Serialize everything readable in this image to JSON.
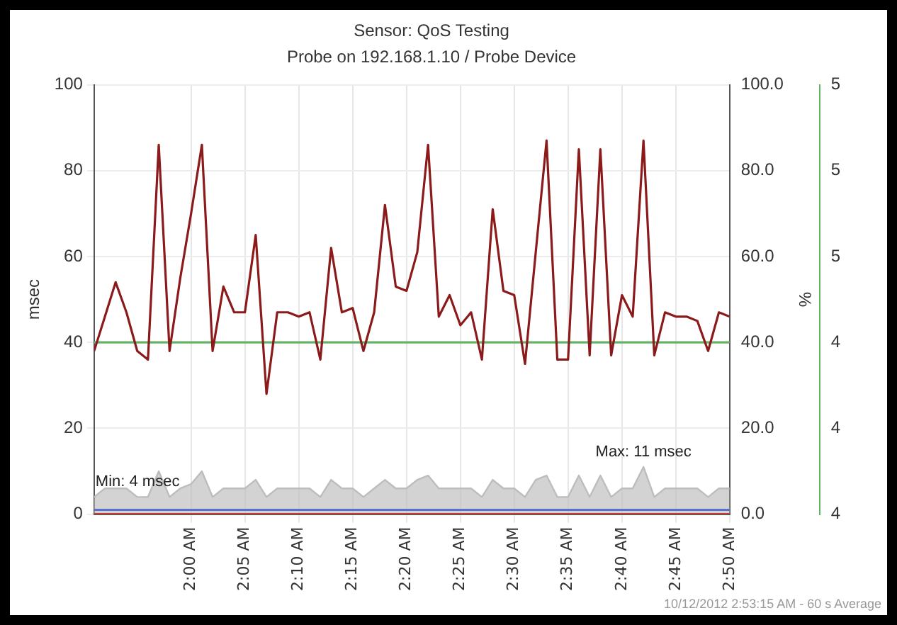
{
  "chart_data": {
    "type": "line",
    "title": "Sensor: QoS Testing",
    "subtitle": "Probe on 192.168.1.10 / Probe Device",
    "ylabel": "msec",
    "y2label": "%",
    "x": [
      1.85,
      1.8667,
      1.8833,
      1.9,
      1.9167,
      1.9333,
      1.95,
      1.9667,
      1.9833,
      2,
      2.0167,
      2.0333,
      2.05,
      2.0667,
      2.0833,
      2.1,
      2.1167,
      2.1333,
      2.15,
      2.1667,
      2.1833,
      2.2,
      2.2167,
      2.2333,
      2.25,
      2.2667,
      2.2833,
      2.3,
      2.3167,
      2.3333,
      2.35,
      2.3667,
      2.3833,
      2.4,
      2.4167,
      2.4333,
      2.45,
      2.4667,
      2.4833,
      2.5,
      2.5167,
      2.5333,
      2.55,
      2.5667,
      2.5833,
      2.6,
      2.6167,
      2.6333,
      2.65,
      2.6667,
      2.6833,
      2.7,
      2.7167,
      2.7333,
      2.75,
      2.7667,
      2.7833,
      2.8,
      2.8167,
      2.8333
    ],
    "series": [
      {
        "color": "#8b1a1a",
        "values": [
          38,
          46,
          54,
          47,
          38,
          36,
          86,
          38,
          55,
          70,
          86,
          38,
          53,
          47,
          47,
          65,
          28,
          47,
          47,
          46,
          47,
          36,
          62,
          47,
          48,
          38,
          47,
          72,
          53,
          52,
          61,
          86,
          46,
          51,
          44,
          47,
          36,
          71,
          52,
          51,
          35,
          61,
          87,
          36,
          36,
          85,
          37,
          85,
          37,
          51,
          46,
          87,
          37,
          47,
          46,
          46,
          45,
          38,
          47,
          46
        ]
      },
      {
        "axis": "y3",
        "color": "#66b366",
        "values": [
          4.4,
          4.4,
          4.4,
          4.4,
          4.4,
          4.4,
          4.4,
          4.4,
          4.4,
          4.4,
          4.4,
          4.4,
          4.4,
          4.4,
          4.4,
          4.4,
          4.4,
          4.4,
          4.4,
          4.4,
          4.4,
          4.4,
          4.4,
          4.4,
          4.4,
          4.4,
          4.4,
          4.4,
          4.4,
          4.4,
          4.4,
          4.4,
          4.4,
          4.4,
          4.4,
          4.4,
          4.4,
          4.4,
          4.4,
          4.4,
          4.4,
          4.4,
          4.4,
          4.4,
          4.4,
          4.4,
          4.4,
          4.4,
          4.4,
          4.4,
          4.4,
          4.4,
          4.4,
          4.4,
          4.4,
          4.4,
          4.4,
          4.4,
          4.4,
          4.4
        ]
      },
      {
        "axis": "y2",
        "color": "#e03030",
        "values": [
          0,
          0,
          0,
          0,
          0,
          0,
          0,
          0,
          0,
          0,
          0,
          0,
          0,
          0,
          0,
          0,
          0,
          0,
          0,
          0,
          0,
          0,
          0,
          0,
          0,
          0,
          0,
          0,
          0,
          0,
          0,
          0,
          0,
          0,
          0,
          0,
          0,
          0,
          0,
          0,
          0,
          0,
          0,
          0,
          0,
          0,
          0,
          0,
          0,
          0,
          0,
          0,
          0,
          0,
          0,
          0,
          0,
          0,
          0,
          0
        ]
      },
      {
        "color": "#5b6fd0",
        "values": [
          1,
          1,
          1,
          1,
          1,
          1,
          1,
          1,
          1,
          1,
          1,
          1,
          1,
          1,
          1,
          1,
          1,
          1,
          1,
          1,
          1,
          1,
          1,
          1,
          1,
          1,
          1,
          1,
          1,
          1,
          1,
          1,
          1,
          1,
          1,
          1,
          1,
          1,
          1,
          1,
          1,
          1,
          1,
          1,
          1,
          1,
          1,
          1,
          1,
          1,
          1,
          1,
          1,
          1,
          1,
          1,
          1,
          1,
          1,
          1
        ]
      },
      {
        "type": "area",
        "color": "#bdbdbd",
        "values": [
          4,
          6,
          6,
          6,
          4,
          4,
          10,
          4,
          6,
          7,
          10,
          4,
          6,
          6,
          6,
          8,
          4,
          6,
          6,
          6,
          6,
          4,
          8,
          6,
          6,
          4,
          6,
          8,
          6,
          6,
          8,
          9,
          6,
          6,
          6,
          6,
          4,
          8,
          6,
          6,
          4,
          8,
          9,
          4,
          4,
          9,
          4,
          9,
          4,
          6,
          6,
          11,
          4,
          6,
          6,
          6,
          6,
          4,
          6,
          6
        ]
      }
    ],
    "xlim": [
      1.85,
      2.8333
    ],
    "xticks": [
      {
        "value": 2,
        "label": "2:00 AM"
      },
      {
        "value": 2.0833,
        "label": "2:05 AM"
      },
      {
        "value": 2.1667,
        "label": "2:10 AM"
      },
      {
        "value": 2.25,
        "label": "2:15 AM"
      },
      {
        "value": 2.3333,
        "label": "2:20 AM"
      },
      {
        "value": 2.4167,
        "label": "2:25 AM"
      },
      {
        "value": 2.5,
        "label": "2:30 AM"
      },
      {
        "value": 2.5833,
        "label": "2:35 AM"
      },
      {
        "value": 2.6667,
        "label": "2:40 AM"
      },
      {
        "value": 2.75,
        "label": "2:45 AM"
      },
      {
        "value": 2.8333,
        "label": "2:50 AM"
      }
    ],
    "ylim": [
      0,
      100
    ],
    "yticks": [
      0,
      20,
      40,
      60,
      80,
      100
    ],
    "y2lim": [
      0,
      100
    ],
    "y2ticks": [
      {
        "value": 0,
        "label": "0.0"
      },
      {
        "value": 20,
        "label": "20.0"
      },
      {
        "value": 40,
        "label": "40.0"
      },
      {
        "value": 60,
        "label": "60.0"
      },
      {
        "value": 80,
        "label": "80.0"
      },
      {
        "value": 100,
        "label": "100.0"
      }
    ],
    "y3lim": [
      4,
      5
    ],
    "y3ticks": [
      {
        "value": 4,
        "label": "4"
      },
      {
        "value": 4.2,
        "label": "4"
      },
      {
        "value": 4.4,
        "label": "4"
      },
      {
        "value": 4.6,
        "label": "5"
      },
      {
        "value": 4.8,
        "label": "5"
      },
      {
        "value": 5,
        "label": "5"
      }
    ],
    "grid": true,
    "marker": "none",
    "annotations": [
      {
        "text": "Min: 4 msec",
        "x": 1.85,
        "y": 4
      },
      {
        "text": "Max: 11 msec",
        "x": 2.7,
        "y": 11
      },
      "10/12/2012 2:53:15 AM - 60 s Average"
    ]
  }
}
